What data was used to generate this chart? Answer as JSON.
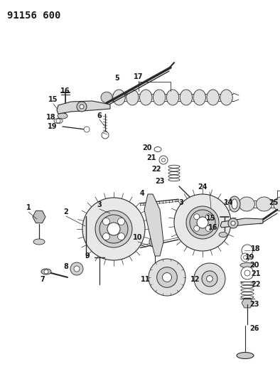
{
  "title": "91156 600",
  "bg_color": "#ffffff",
  "lc": "#2a2a2a",
  "fig_width": 3.94,
  "fig_height": 5.33,
  "dpi": 100
}
